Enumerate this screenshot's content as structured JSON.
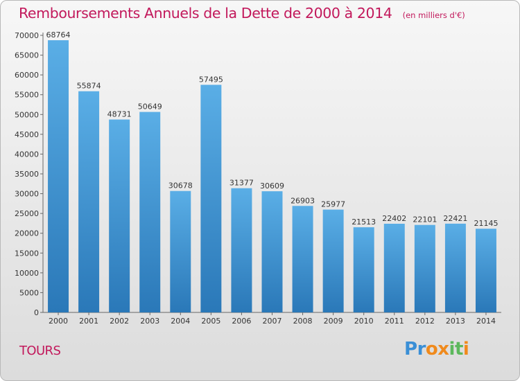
{
  "header": {
    "title": "Remboursements Annuels de la Dette de 2000 à 2014",
    "unit": "(en milliers d'€)"
  },
  "footer": {
    "city": "TOURS",
    "logo": [
      "P",
      "r",
      "o",
      "x",
      "i",
      "t",
      "i"
    ]
  },
  "colors": {
    "accent": "#c2185b",
    "bar_top": "#5aaee6",
    "bar_bottom": "#2a78b8",
    "logo": [
      "#3a8fd6",
      "#3a8fd6",
      "#f08a1c",
      "#f08a1c",
      "#5cb85c",
      "#5cb85c",
      "#f08a1c"
    ]
  },
  "chart_data": {
    "type": "bar",
    "title": "Remboursements Annuels de la Dette de 2000 à 2014",
    "xlabel": "",
    "ylabel": "",
    "categories": [
      "2000",
      "2001",
      "2002",
      "2003",
      "2004",
      "2005",
      "2006",
      "2007",
      "2008",
      "2009",
      "2010",
      "2011",
      "2012",
      "2013",
      "2014"
    ],
    "values": [
      68764,
      55874,
      48731,
      50649,
      30678,
      57495,
      31377,
      30609,
      26903,
      25977,
      21513,
      22402,
      22101,
      22421,
      21145
    ],
    "ylim": [
      0,
      70000
    ],
    "yticks": [
      0,
      5000,
      10000,
      15000,
      20000,
      25000,
      30000,
      35000,
      40000,
      45000,
      50000,
      55000,
      60000,
      65000,
      70000
    ],
    "grid": false,
    "legend": "none"
  }
}
